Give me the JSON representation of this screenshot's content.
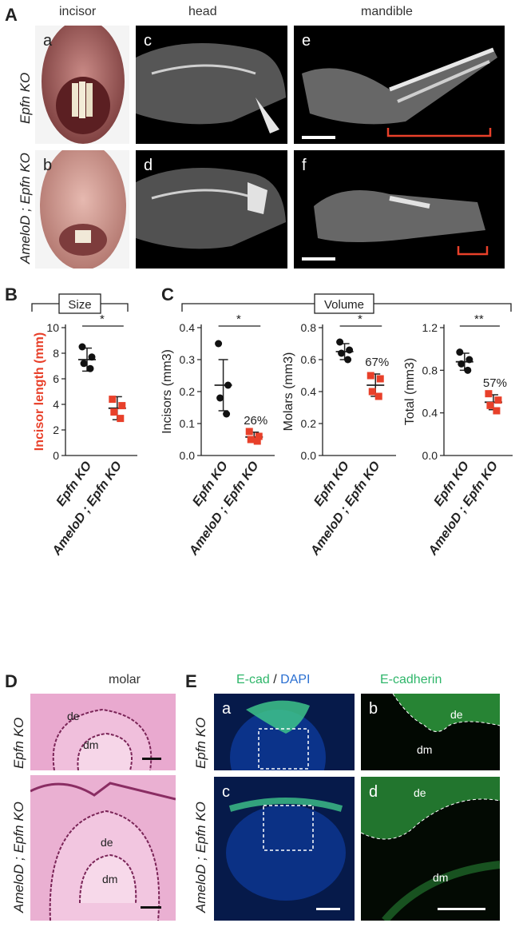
{
  "panelA": {
    "letter": "A",
    "columns": [
      "incisor",
      "head",
      "mandible"
    ],
    "rows": [
      "Epfn KO",
      "AmeloD ; Epfn KO"
    ],
    "sub": [
      "a",
      "b",
      "c",
      "d",
      "e",
      "f"
    ]
  },
  "panelB": {
    "letter": "B",
    "box": "Size",
    "ylabel": "Incisor length (mm)",
    "sig": "*"
  },
  "panelC": {
    "letter": "C",
    "box": "Volume",
    "ylabels": [
      "Incisors (mm3)",
      "Molars (mm3)",
      "Total (mm3)"
    ],
    "percents": [
      "26%",
      "67%",
      "57%"
    ],
    "sigs": [
      "*",
      "*",
      "**"
    ]
  },
  "groups": [
    "Epfn KO",
    "AmeloD ; Epfn KO"
  ],
  "chart_data": [
    {
      "type": "scatter",
      "title": "Size",
      "ylabel": "Incisor length (mm)",
      "categories": [
        "Epfn KO",
        "AmeloD ; Epfn KO"
      ],
      "ylim": [
        0,
        10
      ],
      "yticks": [
        0,
        2,
        4,
        6,
        8,
        10
      ],
      "series": [
        {
          "name": "Epfn KO",
          "points": [
            8.5,
            7.7,
            7.2,
            6.8
          ],
          "mean": 7.5,
          "sd": 0.9,
          "color": "#111111"
        },
        {
          "name": "AmeloD ; Epfn KO",
          "points": [
            4.4,
            3.9,
            3.4,
            2.9
          ],
          "mean": 3.7,
          "sd": 0.9,
          "color": "#e8402a"
        }
      ]
    },
    {
      "type": "scatter",
      "ylabel": "Incisors (mm3)",
      "categories": [
        "Epfn KO",
        "AmeloD ; Epfn KO"
      ],
      "ylim": [
        0,
        0.4
      ],
      "yticks": [
        0.0,
        0.1,
        0.2,
        0.3,
        0.4
      ],
      "annotation": "26%",
      "series": [
        {
          "name": "Epfn KO",
          "points": [
            0.35,
            0.22,
            0.18,
            0.13
          ],
          "mean": 0.22,
          "sd": 0.08,
          "color": "#111111"
        },
        {
          "name": "AmeloD ; Epfn KO",
          "points": [
            0.075,
            0.06,
            0.05,
            0.045
          ],
          "mean": 0.058,
          "sd": 0.015,
          "color": "#e8402a"
        }
      ]
    },
    {
      "type": "scatter",
      "ylabel": "Molars (mm3)",
      "categories": [
        "Epfn KO",
        "AmeloD ; Epfn KO"
      ],
      "ylim": [
        0,
        0.8
      ],
      "yticks": [
        0.0,
        0.2,
        0.4,
        0.6,
        0.8
      ],
      "annotation": "67%",
      "series": [
        {
          "name": "Epfn KO",
          "points": [
            0.71,
            0.66,
            0.64,
            0.6
          ],
          "mean": 0.65,
          "sd": 0.05,
          "color": "#111111"
        },
        {
          "name": "AmeloD ; Epfn KO",
          "points": [
            0.5,
            0.48,
            0.4,
            0.37
          ],
          "mean": 0.44,
          "sd": 0.07,
          "color": "#e8402a"
        }
      ]
    },
    {
      "type": "scatter",
      "ylabel": "Total (mm3)",
      "categories": [
        "Epfn KO",
        "AmeloD ; Epfn KO"
      ],
      "ylim": [
        0,
        1.2
      ],
      "yticks": [
        0.0,
        0.4,
        0.8,
        1.2
      ],
      "annotation": "57%",
      "series": [
        {
          "name": "Epfn KO",
          "points": [
            0.97,
            0.9,
            0.86,
            0.8
          ],
          "mean": 0.88,
          "sd": 0.08,
          "color": "#111111"
        },
        {
          "name": "AmeloD ; Epfn KO",
          "points": [
            0.58,
            0.52,
            0.47,
            0.42
          ],
          "mean": 0.5,
          "sd": 0.07,
          "color": "#e8402a"
        }
      ]
    }
  ],
  "panelD": {
    "letter": "D",
    "title": "molar",
    "rows": [
      "Epfn KO",
      "AmeloD ; Epfn KO"
    ],
    "labels": [
      "de",
      "dm",
      "de",
      "dm"
    ]
  },
  "panelE": {
    "letter": "E",
    "title_left_1": "E-cad",
    "title_left_sep": " / ",
    "title_left_2": "DAPI",
    "title_right": "E-cadherin",
    "rows": [
      "Epfn KO",
      "AmeloD ; Epfn KO"
    ],
    "sub": [
      "a",
      "b",
      "c",
      "d"
    ],
    "labels": [
      "de",
      "dm",
      "de",
      "dm"
    ]
  },
  "colors": {
    "red": "#e8402a",
    "green": "#2fb66a",
    "blue": "#2a6fd1"
  }
}
